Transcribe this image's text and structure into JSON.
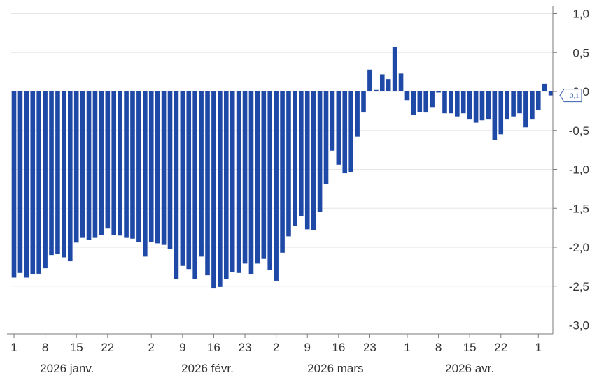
{
  "chart_data": {
    "type": "bar",
    "colors": {
      "bar": "#1f49a7",
      "grid": "#e6e6e6",
      "axis": "#7a7a7a",
      "text": "#333333",
      "badge_border": "#3a5fb0"
    },
    "ylim": [
      -3.0,
      1.0
    ],
    "yticks": [
      1.0,
      0.5,
      0.0,
      -0.5,
      -1.0,
      -1.5,
      -2.0,
      -2.5,
      -3.0
    ],
    "ytick_labels": [
      "1,0",
      "0,5",
      "0,0",
      "-0,5",
      "-1,0",
      "-1,5",
      "-2,0",
      "-2,5",
      "-3,0"
    ],
    "xticks": [
      {
        "index": 0,
        "label": "1"
      },
      {
        "index": 5,
        "label": "8"
      },
      {
        "index": 10,
        "label": "15"
      },
      {
        "index": 15,
        "label": "22"
      },
      {
        "index": 22,
        "label": "2"
      },
      {
        "index": 27,
        "label": "9"
      },
      {
        "index": 32,
        "label": "16"
      },
      {
        "index": 37,
        "label": "23"
      },
      {
        "index": 42,
        "label": "2"
      },
      {
        "index": 47,
        "label": "9"
      },
      {
        "index": 52,
        "label": "16"
      },
      {
        "index": 57,
        "label": "23"
      },
      {
        "index": 63,
        "label": "1"
      },
      {
        "index": 68,
        "label": "8"
      },
      {
        "index": 73,
        "label": "15"
      },
      {
        "index": 78,
        "label": "22"
      },
      {
        "index": 84,
        "label": "1"
      }
    ],
    "month_labels": [
      {
        "center_index": 8.5,
        "label": "2026 janv."
      },
      {
        "center_index": 31,
        "label": "2026 févr."
      },
      {
        "center_index": 51.5,
        "label": "2026 mars"
      },
      {
        "center_index": 73,
        "label": "2026 avr."
      }
    ],
    "last_value_label": "-0,1",
    "last_value": -0.05,
    "values": [
      -2.39,
      -2.33,
      -2.39,
      -2.35,
      -2.34,
      -2.27,
      -2.1,
      -2.09,
      -2.13,
      -2.18,
      -1.94,
      -1.88,
      -1.91,
      -1.88,
      -1.84,
      -1.76,
      -1.84,
      -1.85,
      -1.88,
      -1.89,
      -1.93,
      -2.12,
      -1.93,
      -1.95,
      -1.97,
      -2.02,
      -2.41,
      -2.24,
      -2.28,
      -2.41,
      -2.12,
      -2.36,
      -2.53,
      -2.51,
      -2.41,
      -2.32,
      -2.33,
      -2.21,
      -2.35,
      -2.21,
      -2.15,
      -2.29,
      -2.43,
      -2.07,
      -1.86,
      -1.73,
      -1.6,
      -1.77,
      -1.78,
      -1.55,
      -1.19,
      -0.76,
      -0.94,
      -1.05,
      -1.04,
      -0.58,
      -0.27,
      0.28,
      0.02,
      0.22,
      0.16,
      0.57,
      0.23,
      -0.11,
      -0.3,
      -0.26,
      -0.27,
      -0.2,
      -0.01,
      -0.28,
      -0.28,
      -0.32,
      -0.28,
      -0.36,
      -0.4,
      -0.37,
      -0.36,
      -0.62,
      -0.55,
      -0.36,
      -0.32,
      -0.28,
      -0.46,
      -0.36,
      -0.24,
      0.1,
      -0.05
    ]
  }
}
